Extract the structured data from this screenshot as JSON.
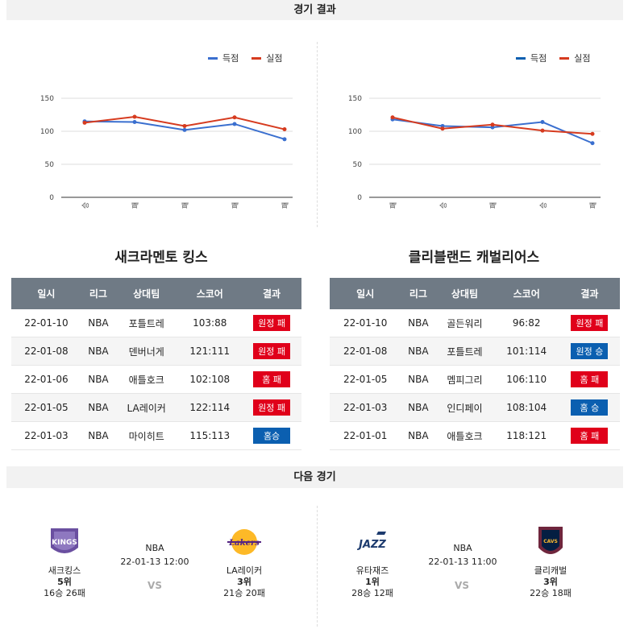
{
  "sections": {
    "results_title": "경기 결과",
    "next_title": "다음 경기"
  },
  "colors": {
    "score": "#3a6fcf",
    "conceded": "#d63b1f"
  },
  "chart_data": [
    {
      "type": "line",
      "legend": [
        "득점",
        "실점"
      ],
      "categories": [
        "승",
        "패",
        "패",
        "패",
        "패"
      ],
      "ylim": [
        0,
        150
      ],
      "yticks": [
        "0",
        "50",
        "100",
        "150"
      ],
      "series": [
        {
          "name": "득점",
          "values": [
            115,
            114,
            102,
            111,
            88
          ]
        },
        {
          "name": "실점",
          "values": [
            113,
            122,
            108,
            121,
            103
          ]
        }
      ]
    },
    {
      "type": "line",
      "legend": [
        "득점",
        "실점"
      ],
      "categories": [
        "패",
        "승",
        "패",
        "승",
        "패"
      ],
      "ylim": [
        0,
        150
      ],
      "yticks": [
        "0",
        "50",
        "100",
        "150"
      ],
      "series": [
        {
          "name": "득점",
          "values": [
            118,
            108,
            106,
            114,
            82
          ]
        },
        {
          "name": "실점",
          "values": [
            121,
            104,
            110,
            101,
            96
          ]
        }
      ]
    }
  ],
  "teams": [
    {
      "name": "새크라멘토 킹스",
      "headers": [
        "일시",
        "리그",
        "상대팀",
        "스코어",
        "결과"
      ],
      "rows": [
        {
          "date": "22-01-10",
          "league": "NBA",
          "opponent": "포틀트레",
          "score": "103:88",
          "result": "원정 패",
          "win": false
        },
        {
          "date": "22-01-08",
          "league": "NBA",
          "opponent": "덴버너게",
          "score": "121:111",
          "result": "원정 패",
          "win": false
        },
        {
          "date": "22-01-06",
          "league": "NBA",
          "opponent": "애틀호크",
          "score": "102:108",
          "result": "홈 패",
          "win": false
        },
        {
          "date": "22-01-05",
          "league": "NBA",
          "opponent": "LA레이커",
          "score": "122:114",
          "result": "원정 패",
          "win": false
        },
        {
          "date": "22-01-03",
          "league": "NBA",
          "opponent": "마이히트",
          "score": "115:113",
          "result": "홈승",
          "win": true
        }
      ]
    },
    {
      "name": "클리블랜드 캐벌리어스",
      "headers": [
        "일시",
        "리그",
        "상대팀",
        "스코어",
        "결과"
      ],
      "rows": [
        {
          "date": "22-01-10",
          "league": "NBA",
          "opponent": "골든워리",
          "score": "96:82",
          "result": "원정 패",
          "win": false
        },
        {
          "date": "22-01-08",
          "league": "NBA",
          "opponent": "포틀트레",
          "score": "101:114",
          "result": "원정 승",
          "win": true
        },
        {
          "date": "22-01-05",
          "league": "NBA",
          "opponent": "멤피그리",
          "score": "106:110",
          "result": "홈 패",
          "win": false
        },
        {
          "date": "22-01-03",
          "league": "NBA",
          "opponent": "인디페이",
          "score": "108:104",
          "result": "홈 승",
          "win": true
        },
        {
          "date": "22-01-01",
          "league": "NBA",
          "opponent": "애틀호크",
          "score": "118:121",
          "result": "홈 패",
          "win": false
        }
      ]
    }
  ],
  "next_games": [
    {
      "home": {
        "name": "새크킹스",
        "rank": "5위",
        "record": "16승 26패",
        "logo": "kings-logo",
        "logo_text": "KINGS"
      },
      "league": "NBA",
      "datetime": "22-01-13 12:00",
      "vs": "VS",
      "away": {
        "name": "LA레이커",
        "rank": "3위",
        "record": "21승 20패",
        "logo": "lakers-logo",
        "logo_text": "Lakers"
      }
    },
    {
      "home": {
        "name": "유타재즈",
        "rank": "1위",
        "record": "28승 12패",
        "logo": "jazz-logo",
        "logo_text": "JAZZ"
      },
      "league": "NBA",
      "datetime": "22-01-13 11:00",
      "vs": "VS",
      "away": {
        "name": "클리캐벌",
        "rank": "3위",
        "record": "22승 18패",
        "logo": "cavaliers-logo",
        "logo_text": "CAVS"
      }
    }
  ]
}
